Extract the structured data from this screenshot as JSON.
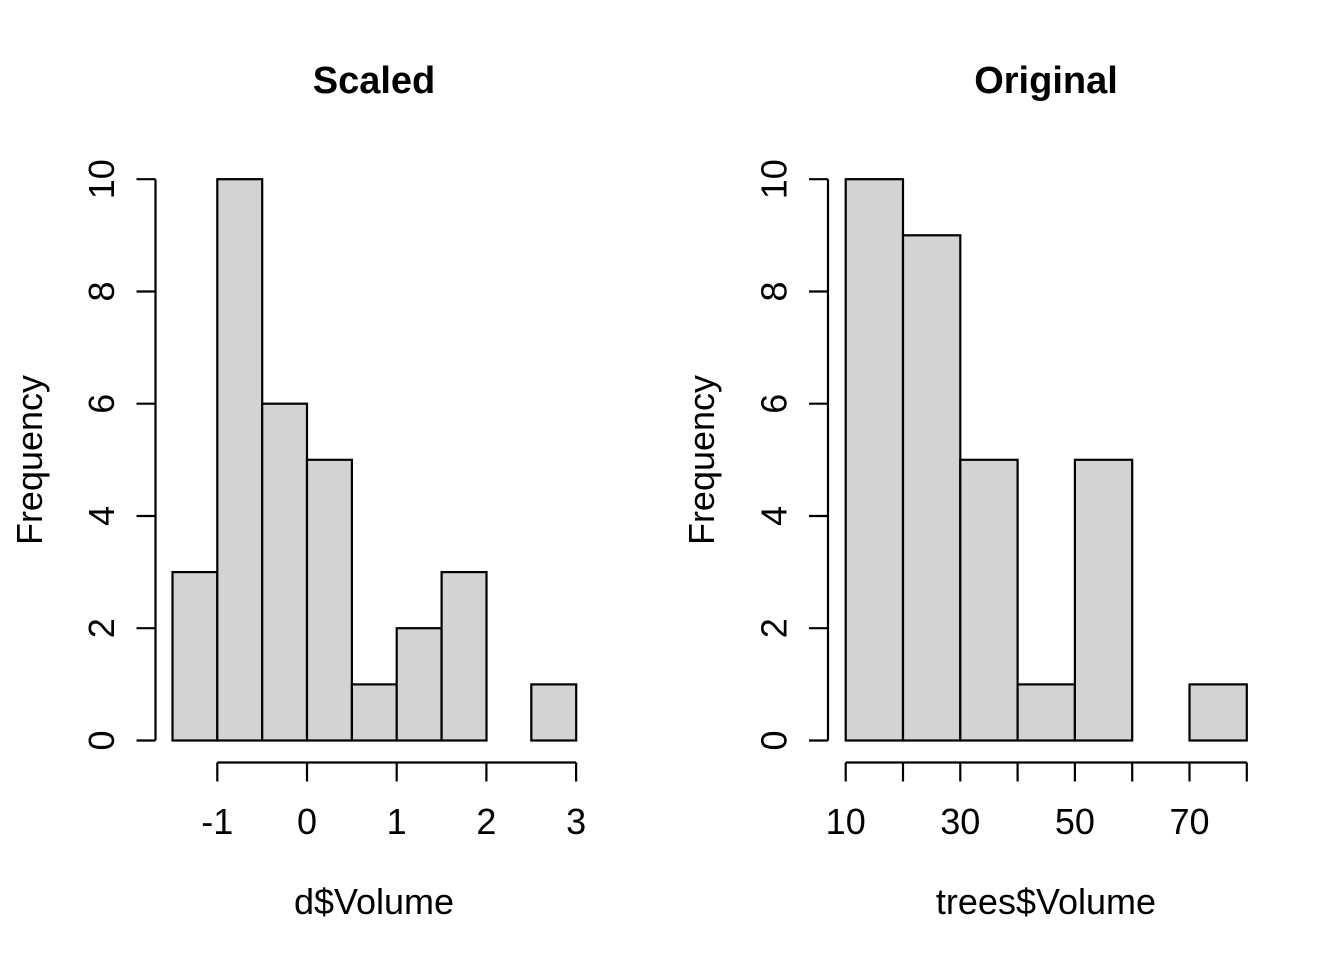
{
  "figure": {
    "background": "#ffffff",
    "text_color": "#000000"
  },
  "chart_data": [
    {
      "type": "bar",
      "subtype": "histogram",
      "title": "Scaled",
      "xlabel": "d$Volume",
      "ylabel": "Frequency",
      "breaks": [
        -1.5,
        -1,
        -0.5,
        0,
        0.5,
        1,
        1.5,
        2,
        2.5,
        3
      ],
      "counts": [
        3,
        10,
        6,
        5,
        1,
        2,
        3,
        0,
        1
      ],
      "x_tick_values": [
        -1,
        0,
        1,
        2,
        3
      ],
      "x_tick_labels": [
        "-1",
        "0",
        "1",
        "2",
        "3"
      ],
      "y_tick_values": [
        0,
        2,
        4,
        6,
        8,
        10
      ],
      "y_tick_labels": [
        "0",
        "2",
        "4",
        "6",
        "8",
        "10"
      ],
      "ylim": [
        0,
        10
      ],
      "grid": false,
      "legend": false,
      "bar_fill": "#d3d3d3",
      "bar_border": "#000000"
    },
    {
      "type": "bar",
      "subtype": "histogram",
      "title": "Original",
      "xlabel": "trees$Volume",
      "ylabel": "Frequency",
      "breaks": [
        10,
        20,
        30,
        40,
        50,
        60,
        70,
        80
      ],
      "counts": [
        10,
        9,
        5,
        1,
        5,
        0,
        1
      ],
      "x_tick_values": [
        10,
        20,
        30,
        40,
        50,
        60,
        70,
        80
      ],
      "x_tick_labels": [
        "10",
        "",
        "30",
        "",
        "50",
        "",
        "70",
        ""
      ],
      "y_tick_values": [
        0,
        2,
        4,
        6,
        8,
        10
      ],
      "y_tick_labels": [
        "0",
        "2",
        "4",
        "6",
        "8",
        "10"
      ],
      "ylim": [
        0,
        10
      ],
      "grid": false,
      "legend": false,
      "bar_fill": "#d3d3d3",
      "bar_border": "#000000"
    }
  ]
}
